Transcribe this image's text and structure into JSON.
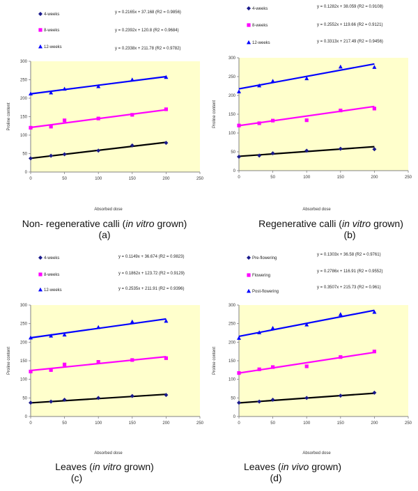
{
  "chart_data": [
    {
      "type": "scatter",
      "xlabel": "Absorbed dose",
      "ylabel": "Proline content",
      "xlim": [
        0,
        250
      ],
      "ylim": [
        0,
        300
      ],
      "xticks": [
        "0",
        "50",
        "100",
        "150",
        "200",
        "250"
      ],
      "yticks": [
        "0",
        "50",
        "100",
        "150",
        "200",
        "250",
        "300"
      ],
      "grid": false,
      "legend_position": "top",
      "caption": "Non- regenerative calli (in vitro grown)",
      "caption_italic": "in vitro",
      "caption_pre": "Non- regenerative calli (",
      "caption_post": " grown)",
      "letter": "(a)",
      "x": [
        0,
        30,
        50,
        100,
        150,
        200
      ],
      "series": [
        {
          "name": "4-weeks",
          "marker": "diamond",
          "color": "#1a1a8c",
          "line_color": "#000000",
          "values": [
            37,
            44,
            48,
            58,
            72,
            79
          ],
          "equation": "y = 0.2165x + 37.168 (R2 = 0.9856)",
          "slope": 0.2165,
          "intercept": 37.168
        },
        {
          "name": "8-weeks",
          "marker": "square",
          "color": "#ff00ff",
          "line_color": "#ff00ff",
          "values": [
            120,
            123,
            140,
            145,
            155,
            170
          ],
          "equation": "y = 0.2392x + 120.8 (R2 = 0.9684)",
          "slope": 0.2392,
          "intercept": 120.8
        },
        {
          "name": "12-weeks",
          "marker": "triangle",
          "color": "#0000ff",
          "line_color": "#0000ff",
          "values": [
            212,
            215,
            225,
            232,
            250,
            257
          ],
          "equation": "y = 0.2338x + 211.78 (R2 = 0.9782)",
          "slope": 0.2338,
          "intercept": 211.78
        }
      ]
    },
    {
      "type": "scatter",
      "xlabel": "Absorbed dose",
      "ylabel": "Proline content",
      "xlim": [
        0,
        250
      ],
      "ylim": [
        0,
        300
      ],
      "xticks": [
        "0",
        "50",
        "100",
        "150",
        "200",
        "250"
      ],
      "yticks": [
        "0",
        "50",
        "100",
        "150",
        "200",
        "250",
        "300"
      ],
      "grid": false,
      "legend_position": "top",
      "caption": "Regenerative calli (in vitro grown)",
      "caption_italic": "in vitro",
      "caption_pre": "Regenerative calli (",
      "caption_post": " grown)",
      "letter": "(b)",
      "x": [
        0,
        30,
        50,
        100,
        150,
        200
      ],
      "series": [
        {
          "name": "4-weeks",
          "marker": "diamond",
          "color": "#1a1a8c",
          "line_color": "#000000",
          "values": [
            37,
            40,
            46,
            53,
            58,
            57
          ],
          "equation": "y = 0.1282x + 38.059 (R2 = 0.9108)",
          "slope": 0.1282,
          "intercept": 38.059
        },
        {
          "name": "8-weeks",
          "marker": "square",
          "color": "#ff00ff",
          "line_color": "#ff00ff",
          "values": [
            120,
            126,
            133,
            134,
            160,
            165
          ],
          "equation": "y = 0.2552x + 119.66 (R2 = 0.9121)",
          "slope": 0.2552,
          "intercept": 119.66
        },
        {
          "name": "12-weeks",
          "marker": "triangle",
          "color": "#0000ff",
          "line_color": "#0000ff",
          "values": [
            210,
            226,
            238,
            245,
            276,
            275
          ],
          "equation": "y = 0.3313x + 217.49 (R2 = 0.9456)",
          "slope": 0.3313,
          "intercept": 217.49
        }
      ]
    },
    {
      "type": "scatter",
      "xlabel": "Absorbed dose",
      "ylabel": "Proline content",
      "xlim": [
        0,
        250
      ],
      "ylim": [
        0,
        300
      ],
      "xticks": [
        "0",
        "50",
        "100",
        "150",
        "200",
        "250"
      ],
      "yticks": [
        "0",
        "50",
        "100",
        "150",
        "200",
        "250",
        "300"
      ],
      "grid": false,
      "legend_position": "top",
      "caption": "Leaves (in vitro grown)",
      "caption_italic": "in vitro",
      "caption_pre": "Leaves (",
      "caption_post": " grown)",
      "letter": "(c)",
      "x": [
        0,
        30,
        50,
        100,
        150,
        200
      ],
      "series": [
        {
          "name": "4-weeks",
          "marker": "diamond",
          "color": "#1a1a8c",
          "line_color": "#000000",
          "values": [
            37,
            40,
            45,
            50,
            55,
            58
          ],
          "equation": "y = 0.1149x + 36.674 (R2 = 0.9823)",
          "slope": 0.1149,
          "intercept": 36.674
        },
        {
          "name": "8-weeks",
          "marker": "square",
          "color": "#ff00ff",
          "line_color": "#ff00ff",
          "values": [
            121,
            125,
            140,
            147,
            152,
            157
          ],
          "equation": "y = 0.1862x + 123.72 (R2 = 0.9129)",
          "slope": 0.1862,
          "intercept": 123.72
        },
        {
          "name": "12-weeks",
          "marker": "triangle",
          "color": "#0000ff",
          "line_color": "#0000ff",
          "values": [
            212,
            217,
            220,
            240,
            255,
            257
          ],
          "equation": "y = 0.2535x + 211.91 (R2 = 0.9396)",
          "slope": 0.2535,
          "intercept": 211.91
        }
      ]
    },
    {
      "type": "scatter",
      "xlabel": "Absorbed dose",
      "ylabel": "Proline content",
      "xlim": [
        0,
        250
      ],
      "ylim": [
        0,
        300
      ],
      "xticks": [
        "0",
        "50",
        "100",
        "150",
        "200",
        "250"
      ],
      "yticks": [
        "0",
        "50",
        "100",
        "150",
        "200",
        "250",
        "300"
      ],
      "grid": false,
      "legend_position": "top",
      "caption": "Leaves (in vivo grown)",
      "caption_italic": "in vivo",
      "caption_pre": "Leaves (",
      "caption_post": " grown)",
      "letter": "(d)",
      "x": [
        0,
        30,
        50,
        100,
        150,
        200
      ],
      "series": [
        {
          "name": "Pre-flowering",
          "marker": "diamond",
          "color": "#1a1a8c",
          "line_color": "#000000",
          "values": [
            37,
            40,
            45,
            50,
            56,
            64
          ],
          "equation": "y = 0.1303x + 36.58 (R2 = 0.9761)",
          "slope": 0.1303,
          "intercept": 36.58
        },
        {
          "name": "Flowering",
          "marker": "square",
          "color": "#ff00ff",
          "line_color": "#ff00ff",
          "values": [
            117,
            127,
            133,
            135,
            160,
            175
          ],
          "equation": "y = 0.2786x + 116.91 (R2 = 0.9552)",
          "slope": 0.2786,
          "intercept": 116.91
        },
        {
          "name": "Post-flowering",
          "marker": "triangle",
          "color": "#0000ff",
          "line_color": "#0000ff",
          "values": [
            211,
            226,
            238,
            247,
            275,
            281
          ],
          "equation": "y = 0.3507x + 215.73 (R2 = 0.961)",
          "slope": 0.3507,
          "intercept": 215.73
        }
      ]
    }
  ],
  "colors": {
    "plot_background": "#ffffcc",
    "axis": "#808080"
  }
}
